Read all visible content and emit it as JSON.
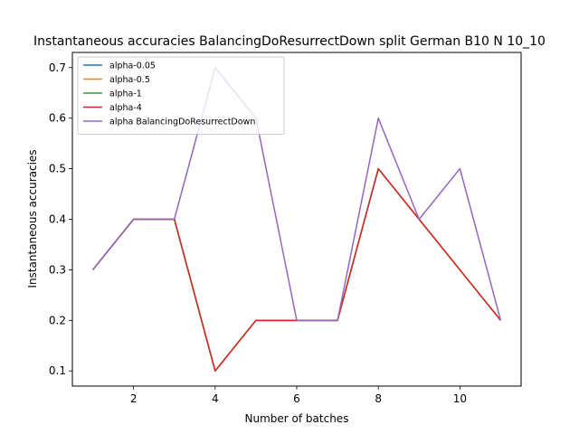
{
  "chart_data": {
    "type": "line",
    "title": "Instantaneous accuracies BalancingDoResurrectDown split German B10 N 10_10",
    "xlabel": "Number of batches",
    "ylabel": "Instantaneous accuracies",
    "xlim": [
      0.5,
      11.5
    ],
    "ylim": [
      0.07,
      0.73
    ],
    "x": [
      1,
      2,
      3,
      4,
      5,
      6,
      7,
      8,
      9,
      10,
      11
    ],
    "xticks": [
      2,
      4,
      6,
      8,
      10
    ],
    "yticks": [
      0.1,
      0.2,
      0.3,
      0.4,
      0.5,
      0.6,
      0.7
    ],
    "legend_position": "top-left",
    "series": [
      {
        "name": "alpha-0.05",
        "color": "#1f77b4",
        "values": [
          0.3,
          0.4,
          0.4,
          0.1,
          0.2,
          0.2,
          0.2,
          0.5,
          0.4,
          0.3,
          0.2
        ]
      },
      {
        "name": "alpha-0.5",
        "color": "#ff7f0e",
        "values": [
          0.3,
          0.4,
          0.4,
          0.1,
          0.2,
          0.2,
          0.2,
          0.5,
          0.4,
          0.3,
          0.2
        ]
      },
      {
        "name": "alpha-1",
        "color": "#2ca02c",
        "values": [
          0.3,
          0.4,
          0.4,
          0.1,
          0.2,
          0.2,
          0.2,
          0.5,
          0.4,
          0.3,
          0.2
        ]
      },
      {
        "name": "alpha-4",
        "color": "#d62728",
        "values": [
          0.3,
          0.4,
          0.4,
          0.1,
          0.2,
          0.2,
          0.2,
          0.5,
          0.4,
          0.3,
          0.2
        ]
      },
      {
        "name": "alpha BalancingDoResurrectDown",
        "color": "#9467bd",
        "values": [
          0.3,
          0.4,
          0.4,
          0.7,
          0.6,
          0.2,
          0.2,
          0.6,
          0.4,
          0.5,
          0.2
        ]
      }
    ]
  }
}
